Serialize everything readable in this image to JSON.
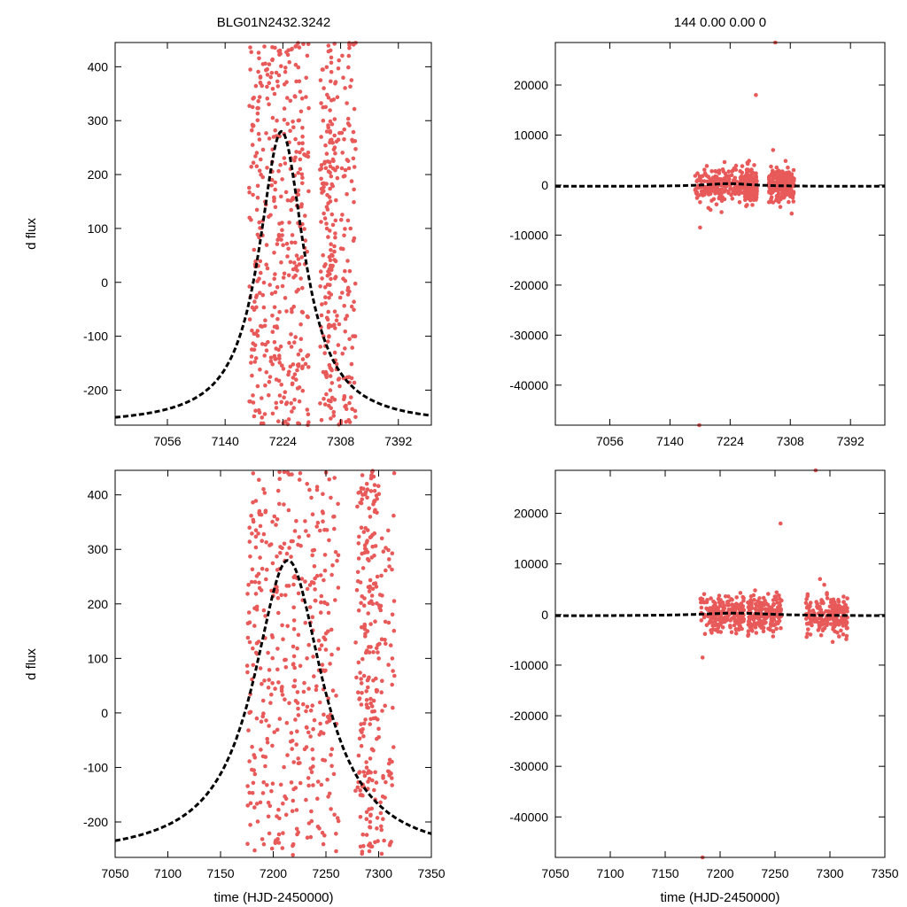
{
  "figure": {
    "colors": {
      "points": "#e85a5a",
      "model": "#000000",
      "frame": "#000000"
    }
  },
  "chart_data": [
    {
      "type": "scatter",
      "panel": "top-left",
      "title": "BLG01N2432.3242",
      "xlabel": "",
      "ylabel": "d flux",
      "xlim": [
        6980,
        7440
      ],
      "ylim": [
        -265,
        445
      ],
      "xticks": [
        "7056",
        "7140",
        "7224",
        "7308",
        "7392"
      ],
      "yticks": [
        "-200",
        "-100",
        "0",
        "100",
        "200",
        "300",
        "400"
      ],
      "observations": {
        "x_range": [
          7175,
          7330
        ],
        "y_range": [
          -265,
          445
        ],
        "count": 700,
        "color": "#e85a5a"
      },
      "model": {
        "kind": "lorentzian",
        "peak_x": 7222,
        "peak_y": 280,
        "base_y": -265,
        "width": 40
      }
    },
    {
      "type": "scatter",
      "panel": "top-right",
      "title": "144  0.00  0.00  0",
      "xlabel": "",
      "ylabel": "",
      "xlim": [
        6980,
        7440
      ],
      "ylim": [
        -48000,
        28500
      ],
      "xticks": [
        "7056",
        "7140",
        "7224",
        "7308",
        "7392"
      ],
      "yticks": [
        "-40000",
        "-30000",
        "-20000",
        "-10000",
        "0",
        "10000",
        "20000"
      ],
      "observations": {
        "segments": [
          [
            7175,
            7242
          ],
          [
            7244,
            7262
          ],
          [
            7278,
            7314
          ]
        ],
        "spread": 1800,
        "count": 600,
        "color": "#e85a5a",
        "outliers": [
          [
            7181,
            -48000
          ],
          [
            7260,
            18000
          ],
          [
            7287,
            28500
          ],
          [
            7182,
            -8500
          ],
          [
            7284,
            7000
          ]
        ]
      },
      "model": {
        "kind": "lorentzian",
        "peak_x": 7222,
        "peak_y": 280,
        "base_y": -265,
        "width": 40
      }
    },
    {
      "type": "scatter",
      "panel": "bottom-left",
      "title": "",
      "xlabel": "time (HJD-2450000)",
      "ylabel": "d flux",
      "xlim": [
        7050,
        7350
      ],
      "ylim": [
        -265,
        445
      ],
      "xticks": [
        "7050",
        "7100",
        "7150",
        "7200",
        "7250",
        "7300",
        "7350"
      ],
      "yticks": [
        "-200",
        "-100",
        "0",
        "100",
        "200",
        "300",
        "400"
      ],
      "observations": {
        "x_range": [
          7175,
          7315
        ],
        "y_range": [
          -265,
          445
        ],
        "count": 700,
        "color": "#e85a5a"
      },
      "model": {
        "kind": "lorentzian",
        "peak_x": 7214,
        "peak_y": 280,
        "base_y": -265,
        "width": 40
      }
    },
    {
      "type": "scatter",
      "panel": "bottom-right",
      "title": "",
      "xlabel": "time (HJD-2450000)",
      "ylabel": "",
      "xlim": [
        7050,
        7350
      ],
      "ylim": [
        -48000,
        28500
      ],
      "xticks": [
        "7050",
        "7100",
        "7150",
        "7200",
        "7250",
        "7300",
        "7350"
      ],
      "yticks": [
        "-40000",
        "-30000",
        "-20000",
        "-10000",
        "0",
        "10000",
        "20000"
      ],
      "observations": {
        "segments": [
          [
            7182,
            7222
          ],
          [
            7225,
            7256
          ],
          [
            7278,
            7316
          ]
        ],
        "spread": 1800,
        "count": 600,
        "color": "#e85a5a",
        "outliers": [
          [
            7184,
            -48000
          ],
          [
            7255,
            18000
          ],
          [
            7287,
            28500
          ],
          [
            7184,
            -8500
          ],
          [
            7291,
            7000
          ]
        ]
      },
      "model": {
        "kind": "lorentzian",
        "peak_x": 7214,
        "peak_y": 280,
        "base_y": -265,
        "width": 40
      }
    }
  ]
}
